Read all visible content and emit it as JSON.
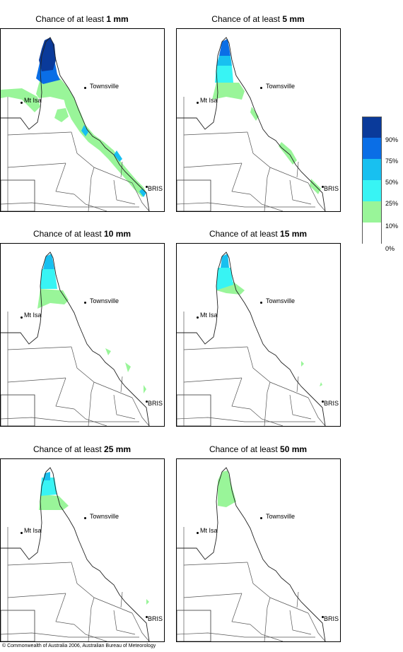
{
  "panels": [
    {
      "prefix": "Chance of at least",
      "amount": "1 mm",
      "level": 0
    },
    {
      "prefix": "Chance of at least",
      "amount": "5 mm",
      "level": 1
    },
    {
      "prefix": "Chance of at least",
      "amount": "10 mm",
      "level": 2
    },
    {
      "prefix": "Chance of at least",
      "amount": "15 mm",
      "level": 3
    },
    {
      "prefix": "Chance of at least",
      "amount": "25 mm",
      "level": 4
    },
    {
      "prefix": "Chance of at least",
      "amount": "50 mm",
      "level": 5
    }
  ],
  "places": {
    "townsville": "Townsville",
    "mt_isa": "Mt Isa",
    "bris": "BRIS"
  },
  "legend": {
    "colors": [
      "#0a3a9a",
      "#0a6ee6",
      "#18c0f0",
      "#38f4f4",
      "#99f599",
      "#ffffff"
    ],
    "ticks": [
      "90%",
      "75%",
      "50%",
      "25%",
      "10%",
      "0%"
    ]
  },
  "copyright": "© Commonwealth of Australia 2006, Australian Bureau of Meteorology"
}
